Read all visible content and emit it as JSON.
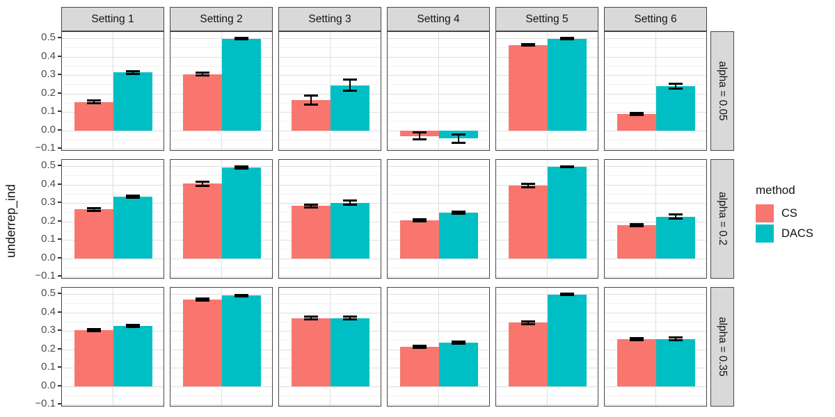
{
  "chart_data": {
    "type": "bar",
    "title": "",
    "ylabel": "underrep_ind",
    "xlabel": "",
    "facet_cols": [
      "Setting 1",
      "Setting 2",
      "Setting 3",
      "Setting 4",
      "Setting 5",
      "Setting 6"
    ],
    "facet_rows": [
      "alpha = 0.05",
      "alpha = 0.2",
      "alpha = 0.35"
    ],
    "legend": {
      "title": "method",
      "entries": [
        {
          "label": "CS",
          "color": "#F8766D"
        },
        {
          "label": "DACS",
          "color": "#00BFC4"
        }
      ]
    },
    "ylim": [
      -0.1,
      0.5
    ],
    "grid": true,
    "legend_position": "right",
    "y_ticks": [
      {
        "v": 0.5,
        "label": "0.5"
      },
      {
        "v": 0.4,
        "label": "0.4"
      },
      {
        "v": 0.3,
        "label": "0.3"
      },
      {
        "v": 0.2,
        "label": "0.2"
      },
      {
        "v": 0.1,
        "label": "0.1"
      },
      {
        "v": 0.0,
        "label": "0.0"
      },
      {
        "v": -0.1,
        "label": "−0.1"
      }
    ],
    "series": [
      "CS",
      "DACS"
    ],
    "rows": [
      {
        "label": "alpha = 0.05",
        "panels": [
          {
            "setting": "Setting 1",
            "CS": {
              "mean": 0.155,
              "se": 0.008
            },
            "DACS": {
              "mean": 0.315,
              "se": 0.008
            }
          },
          {
            "setting": "Setting 2",
            "CS": {
              "mean": 0.305,
              "se": 0.008
            },
            "DACS": {
              "mean": 0.498,
              "se": 0.004
            }
          },
          {
            "setting": "Setting 3",
            "CS": {
              "mean": 0.165,
              "se": 0.025
            },
            "DACS": {
              "mean": 0.245,
              "se": 0.03
            }
          },
          {
            "setting": "Setting 4",
            "CS": {
              "mean": -0.03,
              "se": 0.02
            },
            "DACS": {
              "mean": -0.045,
              "se": 0.022
            }
          },
          {
            "setting": "Setting 5",
            "CS": {
              "mean": 0.465,
              "se": 0.005
            },
            "DACS": {
              "mean": 0.498,
              "se": 0.003
            }
          },
          {
            "setting": "Setting 6",
            "CS": {
              "mean": 0.09,
              "se": 0.006
            },
            "DACS": {
              "mean": 0.24,
              "se": 0.013
            }
          }
        ]
      },
      {
        "label": "alpha = 0.2",
        "panels": [
          {
            "setting": "Setting 1",
            "CS": {
              "mean": 0.265,
              "se": 0.008
            },
            "DACS": {
              "mean": 0.335,
              "se": 0.005
            }
          },
          {
            "setting": "Setting 2",
            "CS": {
              "mean": 0.405,
              "se": 0.01
            },
            "DACS": {
              "mean": 0.492,
              "se": 0.006
            }
          },
          {
            "setting": "Setting 3",
            "CS": {
              "mean": 0.285,
              "se": 0.008
            },
            "DACS": {
              "mean": 0.302,
              "se": 0.012
            }
          },
          {
            "setting": "Setting 4",
            "CS": {
              "mean": 0.205,
              "se": 0.006
            },
            "DACS": {
              "mean": 0.247,
              "se": 0.005
            }
          },
          {
            "setting": "Setting 5",
            "CS": {
              "mean": 0.395,
              "se": 0.008
            },
            "DACS": {
              "mean": 0.497,
              "se": 0.003
            }
          },
          {
            "setting": "Setting 6",
            "CS": {
              "mean": 0.18,
              "se": 0.006
            },
            "DACS": {
              "mean": 0.227,
              "se": 0.012
            }
          }
        ]
      },
      {
        "label": "alpha = 0.35",
        "panels": [
          {
            "setting": "Setting 1",
            "CS": {
              "mean": 0.305,
              "se": 0.006
            },
            "DACS": {
              "mean": 0.328,
              "se": 0.006
            }
          },
          {
            "setting": "Setting 2",
            "CS": {
              "mean": 0.472,
              "se": 0.006
            },
            "DACS": {
              "mean": 0.492,
              "se": 0.005
            }
          },
          {
            "setting": "Setting 3",
            "CS": {
              "mean": 0.37,
              "se": 0.008
            },
            "DACS": {
              "mean": 0.37,
              "se": 0.008
            }
          },
          {
            "setting": "Setting 4",
            "CS": {
              "mean": 0.215,
              "se": 0.006
            },
            "DACS": {
              "mean": 0.235,
              "se": 0.006
            }
          },
          {
            "setting": "Setting 5",
            "CS": {
              "mean": 0.345,
              "se": 0.007
            },
            "DACS": {
              "mean": 0.498,
              "se": 0.004
            }
          },
          {
            "setting": "Setting 6",
            "CS": {
              "mean": 0.255,
              "se": 0.006
            },
            "DACS": {
              "mean": 0.257,
              "se": 0.006
            }
          }
        ]
      }
    ]
  }
}
